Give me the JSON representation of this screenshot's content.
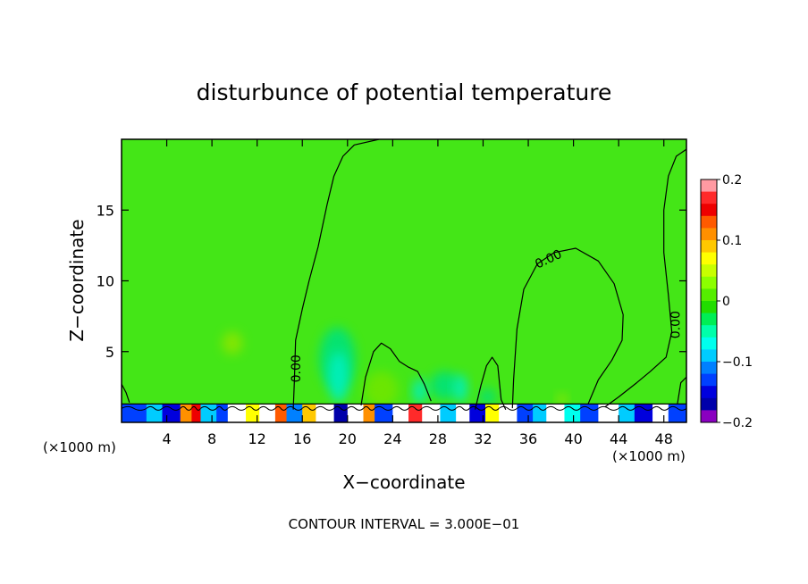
{
  "chart_data": {
    "type": "heatmap",
    "title": "disturbunce of potential temperature",
    "xlabel": "X−coordinate",
    "ylabel": "Z−coordinate",
    "x_unit": "(×1000 m)",
    "x_unit_right": "(×1000 m)",
    "xlim": [
      0,
      50
    ],
    "ylim": [
      0,
      20
    ],
    "x_ticks": [
      4,
      8,
      12,
      16,
      20,
      24,
      28,
      32,
      36,
      40,
      44,
      48
    ],
    "y_ticks": [
      5,
      10,
      15
    ],
    "footer": "CONTOUR INTERVAL = 3.000E−01",
    "contour_labels": [
      {
        "text": "0.00",
        "x": 15.5,
        "z": 3.8
      },
      {
        "text": "0.00",
        "x": 37.8,
        "z": 11.5
      },
      {
        "text": "0.00",
        "x": 49.1,
        "z": 6.9
      }
    ],
    "colorbar": {
      "min": -0.2,
      "max": 0.2,
      "tick_values": [
        0.2,
        0.1,
        0,
        -0.1,
        -0.2
      ],
      "tick_labels": [
        "0.2",
        "0.1",
        "0",
        "−0.1",
        "−0.2"
      ],
      "colors": [
        "#ff9aa2",
        "#ff2a2a",
        "#ee0000",
        "#ff5a00",
        "#ff9000",
        "#ffc800",
        "#ffff00",
        "#c8ff00",
        "#8cff00",
        "#55ee00",
        "#22dd00",
        "#00ee55",
        "#00ffaa",
        "#00ffee",
        "#00ccff",
        "#0080ff",
        "#0040ff",
        "#0000dd",
        "#0000aa",
        "#8a00c0"
      ]
    },
    "background_color": "#44e617",
    "blobs": [
      {
        "x": 9.8,
        "z": 5.6,
        "rx": 0.9,
        "rz": 0.8,
        "color": "#8ae600"
      },
      {
        "x": 19.1,
        "z": 4.5,
        "rx": 1.6,
        "rz": 2.2,
        "color": "#00e27a"
      },
      {
        "x": 19.2,
        "z": 3.2,
        "rx": 0.9,
        "rz": 1.8,
        "color": "#00f0c0"
      },
      {
        "x": 23.0,
        "z": 2.3,
        "rx": 1.5,
        "rz": 1.3,
        "color": "#70e600"
      },
      {
        "x": 28.6,
        "z": 2.6,
        "rx": 1.3,
        "rz": 1.0,
        "color": "#00e27a"
      },
      {
        "x": 30.0,
        "z": 2.4,
        "rx": 0.6,
        "rz": 1.0,
        "color": "#00f0c0"
      },
      {
        "x": 26.4,
        "z": 2.2,
        "rx": 0.6,
        "rz": 0.9,
        "color": "#00f0c0"
      },
      {
        "x": 32.4,
        "z": 1.8,
        "rx": 0.7,
        "rz": 0.6,
        "color": "#00e27a"
      },
      {
        "x": 39.0,
        "z": 1.6,
        "rx": 0.4,
        "rz": 0.4,
        "color": "#a0e600"
      }
    ],
    "boundary_layer_top": 1.3,
    "surface_cells": [
      {
        "x": 0.0,
        "w": 2.2,
        "color": "#0040ff"
      },
      {
        "x": 2.2,
        "w": 1.4,
        "color": "#00ccff"
      },
      {
        "x": 3.6,
        "w": 1.6,
        "color": "#0000dd"
      },
      {
        "x": 5.2,
        "w": 1.0,
        "color": "#ff9000"
      },
      {
        "x": 6.2,
        "w": 0.8,
        "color": "#ee0000"
      },
      {
        "x": 7.0,
        "w": 1.4,
        "color": "#00ccff"
      },
      {
        "x": 8.4,
        "w": 1.0,
        "color": "#0040ff"
      },
      {
        "x": 9.4,
        "w": 1.6,
        "color": "#ffffff"
      },
      {
        "x": 11.0,
        "w": 1.2,
        "color": "#ffff00"
      },
      {
        "x": 12.2,
        "w": 1.4,
        "color": "#ffffff"
      },
      {
        "x": 13.6,
        "w": 1.0,
        "color": "#ff5a00"
      },
      {
        "x": 14.6,
        "w": 1.4,
        "color": "#0080ff"
      },
      {
        "x": 16.0,
        "w": 1.2,
        "color": "#ffc800"
      },
      {
        "x": 17.2,
        "w": 1.6,
        "color": "#ffffff"
      },
      {
        "x": 18.8,
        "w": 1.2,
        "color": "#0000aa"
      },
      {
        "x": 20.0,
        "w": 1.4,
        "color": "#ffffff"
      },
      {
        "x": 21.4,
        "w": 1.0,
        "color": "#ff9000"
      },
      {
        "x": 22.4,
        "w": 1.6,
        "color": "#0040ff"
      },
      {
        "x": 24.0,
        "w": 1.4,
        "color": "#ffffff"
      },
      {
        "x": 25.4,
        "w": 1.2,
        "color": "#ff2a2a"
      },
      {
        "x": 26.6,
        "w": 1.6,
        "color": "#ffffff"
      },
      {
        "x": 28.2,
        "w": 1.4,
        "color": "#00ccff"
      },
      {
        "x": 29.6,
        "w": 1.2,
        "color": "#ffffff"
      },
      {
        "x": 30.8,
        "w": 1.4,
        "color": "#0000dd"
      },
      {
        "x": 32.2,
        "w": 1.2,
        "color": "#ffff00"
      },
      {
        "x": 33.4,
        "w": 1.6,
        "color": "#ffffff"
      },
      {
        "x": 35.0,
        "w": 1.4,
        "color": "#0040ff"
      },
      {
        "x": 36.4,
        "w": 1.2,
        "color": "#00ccff"
      },
      {
        "x": 37.6,
        "w": 1.6,
        "color": "#ffffff"
      },
      {
        "x": 39.2,
        "w": 1.4,
        "color": "#00ffee"
      },
      {
        "x": 40.6,
        "w": 1.6,
        "color": "#0040ff"
      },
      {
        "x": 42.2,
        "w": 1.8,
        "color": "#ffffff"
      },
      {
        "x": 44.0,
        "w": 1.4,
        "color": "#00ccff"
      },
      {
        "x": 45.4,
        "w": 1.6,
        "color": "#0000dd"
      },
      {
        "x": 47.0,
        "w": 1.4,
        "color": "#ffffff"
      },
      {
        "x": 48.4,
        "w": 1.6,
        "color": "#0040ff"
      }
    ],
    "contours": [
      [
        [
          15.2,
          0.9
        ],
        [
          15.3,
          3.0
        ],
        [
          15.4,
          5.8
        ],
        [
          16.0,
          8.0
        ],
        [
          16.6,
          10.0
        ],
        [
          17.4,
          12.4
        ],
        [
          18.2,
          15.4
        ],
        [
          18.8,
          17.4
        ],
        [
          19.6,
          18.8
        ],
        [
          20.6,
          19.6
        ],
        [
          22.8,
          20.0
        ]
      ],
      [
        [
          21.2,
          1.2
        ],
        [
          21.6,
          3.2
        ],
        [
          22.3,
          5.0
        ],
        [
          23.0,
          5.6
        ],
        [
          23.8,
          5.2
        ],
        [
          24.6,
          4.3
        ],
        [
          25.4,
          3.9
        ],
        [
          26.2,
          3.6
        ],
        [
          26.8,
          2.7
        ],
        [
          27.4,
          1.5
        ]
      ],
      [
        [
          31.3,
          0.9
        ],
        [
          31.8,
          2.6
        ],
        [
          32.3,
          4.0
        ],
        [
          32.8,
          4.6
        ],
        [
          33.3,
          4.0
        ],
        [
          33.6,
          1.6
        ],
        [
          34.0,
          0.9
        ]
      ],
      [
        [
          34.6,
          1.0
        ],
        [
          34.7,
          3.0
        ],
        [
          35.0,
          6.6
        ],
        [
          35.6,
          9.4
        ],
        [
          36.8,
          11.2
        ],
        [
          38.3,
          12.0
        ],
        [
          40.2,
          12.3
        ],
        [
          42.2,
          11.4
        ],
        [
          43.6,
          9.8
        ],
        [
          44.4,
          7.6
        ],
        [
          44.3,
          5.8
        ],
        [
          43.4,
          4.4
        ],
        [
          42.2,
          3.0
        ],
        [
          41.3,
          1.3
        ]
      ],
      [
        [
          42.8,
          1.1
        ],
        [
          44.0,
          1.8
        ],
        [
          45.6,
          2.8
        ],
        [
          46.8,
          3.6
        ],
        [
          48.2,
          4.6
        ],
        [
          48.7,
          6.4
        ],
        [
          48.4,
          9.0
        ],
        [
          48.0,
          12.0
        ],
        [
          48.0,
          15.0
        ],
        [
          48.4,
          17.4
        ],
        [
          49.1,
          18.8
        ],
        [
          50.0,
          19.3
        ]
      ],
      [
        [
          0.0,
          2.7
        ],
        [
          0.4,
          2.1
        ],
        [
          0.7,
          1.4
        ]
      ],
      [
        [
          49.2,
          1.3
        ],
        [
          49.5,
          2.8
        ],
        [
          50.0,
          3.2
        ]
      ]
    ]
  }
}
